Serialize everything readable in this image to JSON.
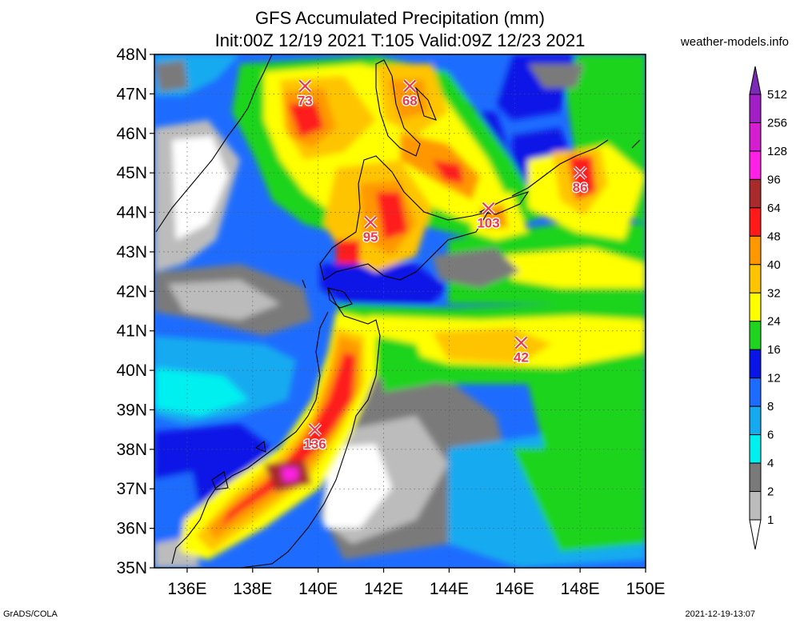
{
  "header": {
    "title_line1": "GFS Accumulated Precipitation (mm)",
    "title_line2": "Init:00Z 12/19 2021 T:105 Valid:09Z 12/23 2021",
    "site": "weather-models.info"
  },
  "footer": {
    "left": "GrADS/COLA",
    "right": "2021-12-19-13:07"
  },
  "map": {
    "lat_labels": [
      "48N",
      "47N",
      "46N",
      "45N",
      "44N",
      "43N",
      "42N",
      "41N",
      "40N",
      "39N",
      "38N",
      "37N",
      "36N",
      "35N"
    ],
    "lon_labels": [
      "136E",
      "138E",
      "140E",
      "142E",
      "144E",
      "146E",
      "148E",
      "150E"
    ],
    "lat_range": [
      35,
      48
    ],
    "lon_range": [
      135,
      150
    ],
    "markers": [
      {
        "lon": 139.6,
        "lat": 47.2,
        "value": "73"
      },
      {
        "lon": 142.8,
        "lat": 47.2,
        "value": "68"
      },
      {
        "lon": 148.0,
        "lat": 45.0,
        "value": "86"
      },
      {
        "lon": 145.2,
        "lat": 44.1,
        "value": "103"
      },
      {
        "lon": 141.6,
        "lat": 43.75,
        "value": "95"
      },
      {
        "lon": 146.2,
        "lat": 40.7,
        "value": "42"
      },
      {
        "lon": 139.9,
        "lat": 38.5,
        "value": "136"
      }
    ]
  },
  "colorbar": {
    "levels": [
      "512",
      "256",
      "128",
      "96",
      "64",
      "48",
      "40",
      "32",
      "24",
      "16",
      "12",
      "8",
      "6",
      "4",
      "2",
      "1"
    ],
    "colors": [
      "#7b2ab8",
      "#a21ec6",
      "#d41ecf",
      "#ff20e8",
      "#a82a2a",
      "#ff1a1a",
      "#ff9800",
      "#ffc400",
      "#ffff00",
      "#1fd41f",
      "#0a14e6",
      "#1e6cff",
      "#15aaf0",
      "#00f0f0",
      "#7a7a7a",
      "#bcbcbc",
      "#ffffff"
    ]
  }
}
